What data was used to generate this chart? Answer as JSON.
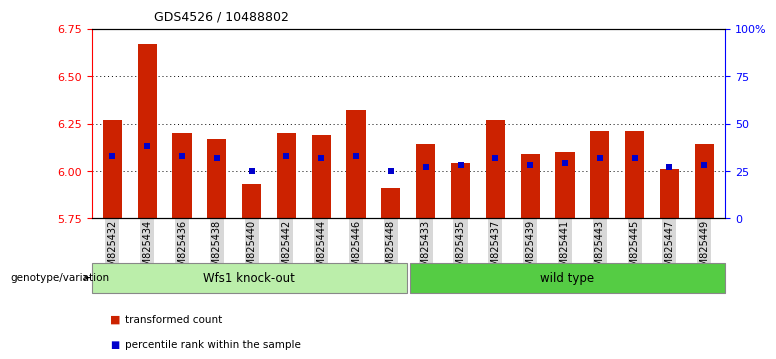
{
  "title": "GDS4526 / 10488802",
  "samples": [
    "GSM825432",
    "GSM825434",
    "GSM825436",
    "GSM825438",
    "GSM825440",
    "GSM825442",
    "GSM825444",
    "GSM825446",
    "GSM825448",
    "GSM825433",
    "GSM825435",
    "GSM825437",
    "GSM825439",
    "GSM825441",
    "GSM825443",
    "GSM825445",
    "GSM825447",
    "GSM825449"
  ],
  "bar_tops": [
    6.27,
    6.67,
    6.2,
    6.17,
    5.93,
    6.2,
    6.19,
    6.32,
    5.91,
    6.14,
    6.04,
    6.27,
    6.09,
    6.1,
    6.21,
    6.21,
    6.01,
    6.14
  ],
  "blue_dots": [
    6.08,
    6.13,
    6.08,
    6.07,
    6.0,
    6.08,
    6.07,
    6.08,
    6.0,
    6.02,
    6.03,
    6.07,
    6.03,
    6.04,
    6.07,
    6.07,
    6.02,
    6.03
  ],
  "bar_bottom": 5.75,
  "ymin": 5.75,
  "ymax": 6.75,
  "y_ticks_left": [
    5.75,
    6.0,
    6.25,
    6.5,
    6.75
  ],
  "y_ticks_right_vals": [
    0,
    25,
    50,
    75,
    100
  ],
  "y_ticks_right_labels": [
    "0",
    "25",
    "50",
    "75",
    "100%"
  ],
  "gridline_y": [
    6.0,
    6.25,
    6.5
  ],
  "group1_label": "Wfs1 knock-out",
  "group2_label": "wild type",
  "group1_count": 9,
  "group2_count": 9,
  "genotype_label": "genotype/variation",
  "legend_bar_label": "transformed count",
  "legend_dot_label": "percentile rank within the sample",
  "bar_color": "#CC2200",
  "dot_color": "#0000CC",
  "group1_color": "#BBEEAA",
  "group2_color": "#55CC44",
  "bar_width": 0.55
}
